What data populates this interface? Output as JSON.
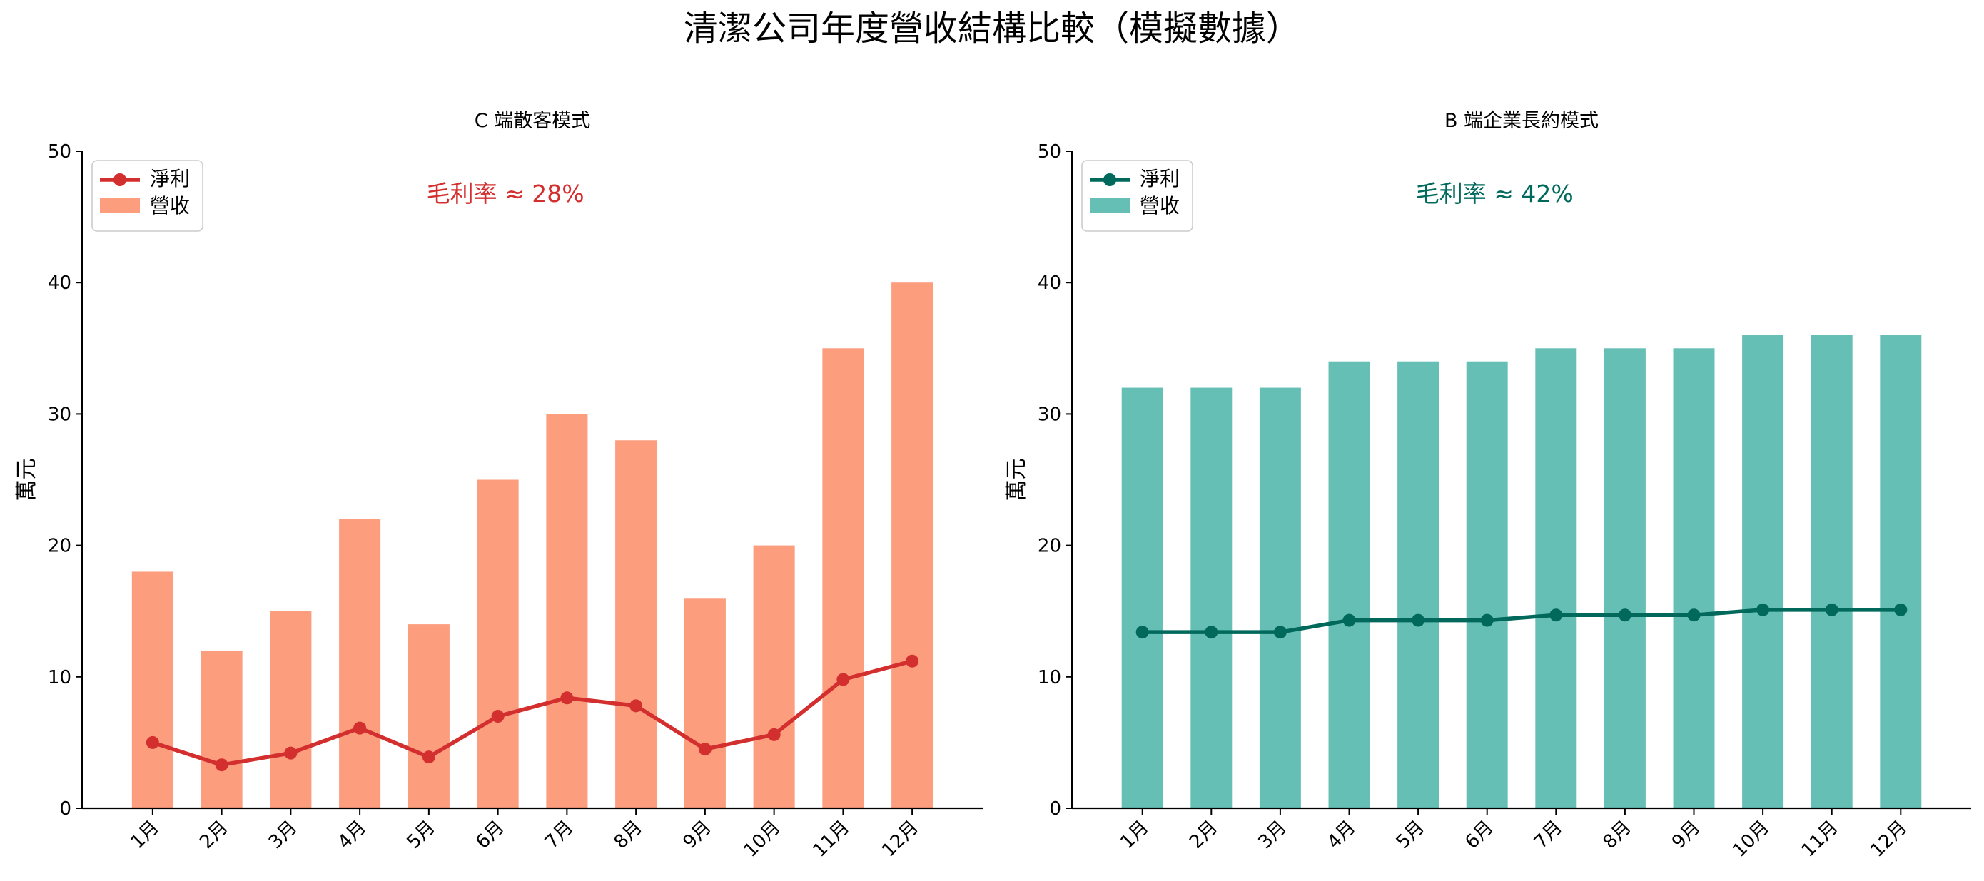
{
  "figure": {
    "title": "清潔公司年度營收結構比較（模擬數據）"
  },
  "chart_data": [
    {
      "type": "bar",
      "title": "C 端散客模式",
      "xlabel": "",
      "ylabel": "萬元",
      "ylim": [
        0,
        50
      ],
      "yticks": [
        0,
        10,
        20,
        30,
        40,
        50
      ],
      "categories": [
        "1月",
        "2月",
        "3月",
        "4月",
        "5月",
        "6月",
        "7月",
        "8月",
        "9月",
        "10月",
        "11月",
        "12月"
      ],
      "series": [
        {
          "name": "營收",
          "kind": "bar",
          "color": "#fc9d7e",
          "values": [
            18,
            12,
            15,
            22,
            14,
            25,
            30,
            28,
            16,
            20,
            35,
            40
          ]
        },
        {
          "name": "淨利",
          "kind": "line",
          "color": "#d32f2f",
          "values": [
            5.0,
            3.3,
            4.2,
            6.1,
            3.9,
            7.0,
            8.4,
            7.8,
            4.5,
            5.6,
            9.8,
            11.2
          ]
        }
      ],
      "annotation": {
        "text": "毛利率 ≈ 28%",
        "color": "#d32f2f"
      },
      "legend_position": "upper-left"
    },
    {
      "type": "bar",
      "title": "B 端企業長約模式",
      "xlabel": "",
      "ylabel": "萬元",
      "ylim": [
        0,
        50
      ],
      "yticks": [
        0,
        10,
        20,
        30,
        40,
        50
      ],
      "categories": [
        "1月",
        "2月",
        "3月",
        "4月",
        "5月",
        "6月",
        "7月",
        "8月",
        "9月",
        "10月",
        "11月",
        "12月"
      ],
      "series": [
        {
          "name": "營收",
          "kind": "bar",
          "color": "#66bfb5",
          "values": [
            32,
            32,
            32,
            34,
            34,
            34,
            35,
            35,
            35,
            36,
            36,
            36
          ]
        },
        {
          "name": "淨利",
          "kind": "line",
          "color": "#00695c",
          "values": [
            13.4,
            13.4,
            13.4,
            14.3,
            14.3,
            14.3,
            14.7,
            14.7,
            14.7,
            15.1,
            15.1,
            15.1
          ]
        }
      ],
      "annotation": {
        "text": "毛利率 ≈ 42%",
        "color": "#00695c"
      },
      "legend_position": "upper-left"
    }
  ]
}
